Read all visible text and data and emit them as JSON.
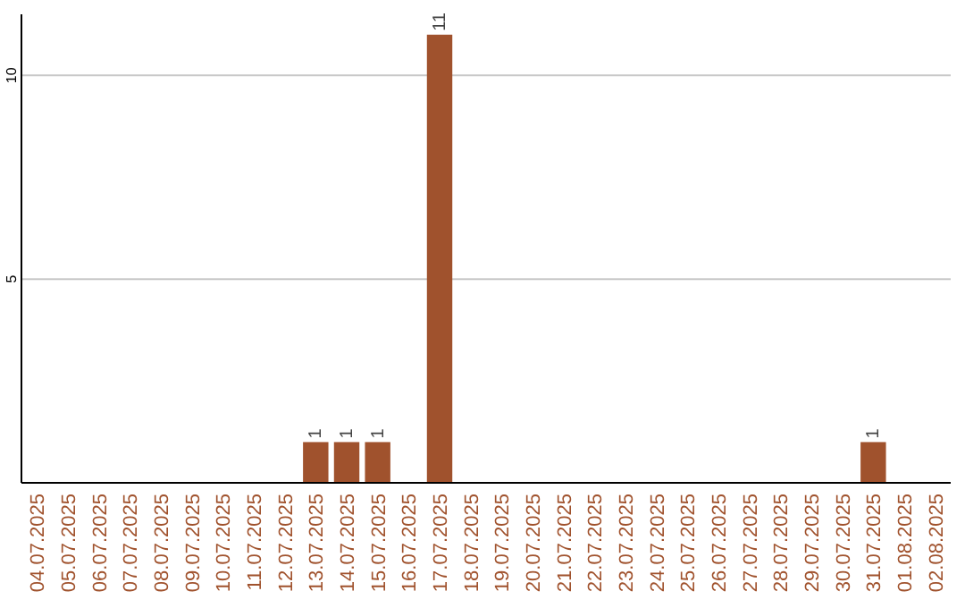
{
  "chart_data": {
    "type": "bar",
    "categories": [
      "04.07.2025",
      "05.07.2025",
      "06.07.2025",
      "07.07.2025",
      "08.07.2025",
      "09.07.2025",
      "10.07.2025",
      "11.07.2025",
      "12.07.2025",
      "13.07.2025",
      "14.07.2025",
      "15.07.2025",
      "16.07.2025",
      "17.07.2025",
      "18.07.2025",
      "19.07.2025",
      "20.07.2025",
      "21.07.2025",
      "22.07.2025",
      "23.07.2025",
      "24.07.2025",
      "25.07.2025",
      "26.07.2025",
      "27.07.2025",
      "28.07.2025",
      "29.07.2025",
      "30.07.2025",
      "31.07.2025",
      "01.08.2025",
      "02.08.2025"
    ],
    "values": [
      0,
      0,
      0,
      0,
      0,
      0,
      0,
      0,
      0,
      1,
      1,
      1,
      0,
      11,
      0,
      0,
      0,
      0,
      0,
      0,
      0,
      0,
      0,
      0,
      0,
      0,
      0,
      1,
      0,
      0
    ],
    "value_labels": [
      null,
      null,
      null,
      null,
      null,
      null,
      null,
      null,
      null,
      "1",
      "1",
      "1",
      null,
      "11",
      null,
      null,
      null,
      null,
      null,
      null,
      null,
      null,
      null,
      null,
      null,
      null,
      null,
      "1",
      null,
      null
    ],
    "color": "#a0522d",
    "ylim": [
      0,
      11.5
    ],
    "yticks": [
      5,
      10
    ],
    "grid": "y"
  }
}
